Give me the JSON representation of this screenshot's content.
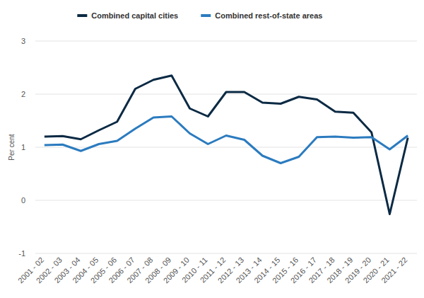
{
  "chart_data": {
    "type": "line",
    "y_label": "Per cent",
    "categories": [
      "2001 - 02",
      "2002 - 03",
      "2003 - 04",
      "2004 - 05",
      "2005 - 06",
      "2006 - 07",
      "2007 - 08",
      "2008 - 09",
      "2009 - 10",
      "2010 - 11",
      "2011 - 12",
      "2012 - 13",
      "2013 - 14",
      "2014 - 15",
      "2015 - 16",
      "2016 - 17",
      "2017 - 18",
      "2018 - 19",
      "2019 - 20",
      "2020 - 21",
      "2021 - 22"
    ],
    "series": [
      {
        "name": "Combined capital cities",
        "color": "#0b2a44",
        "values": [
          1.2,
          1.21,
          1.15,
          1.32,
          1.48,
          2.1,
          2.27,
          2.35,
          1.73,
          1.58,
          2.04,
          2.04,
          1.84,
          1.82,
          1.95,
          1.9,
          1.67,
          1.65,
          1.28,
          -0.26,
          1.18
        ]
      },
      {
        "name": "Combined rest-of-state areas",
        "color": "#2b7bbf",
        "values": [
          1.04,
          1.05,
          0.93,
          1.06,
          1.12,
          1.35,
          1.56,
          1.58,
          1.26,
          1.06,
          1.22,
          1.14,
          0.84,
          0.7,
          0.82,
          1.19,
          1.2,
          1.18,
          1.19,
          0.96,
          1.22
        ]
      }
    ],
    "ylim": [
      -1,
      3
    ],
    "yticks": [
      -1,
      0,
      1,
      2,
      3
    ],
    "grid": true,
    "legend": "top"
  }
}
